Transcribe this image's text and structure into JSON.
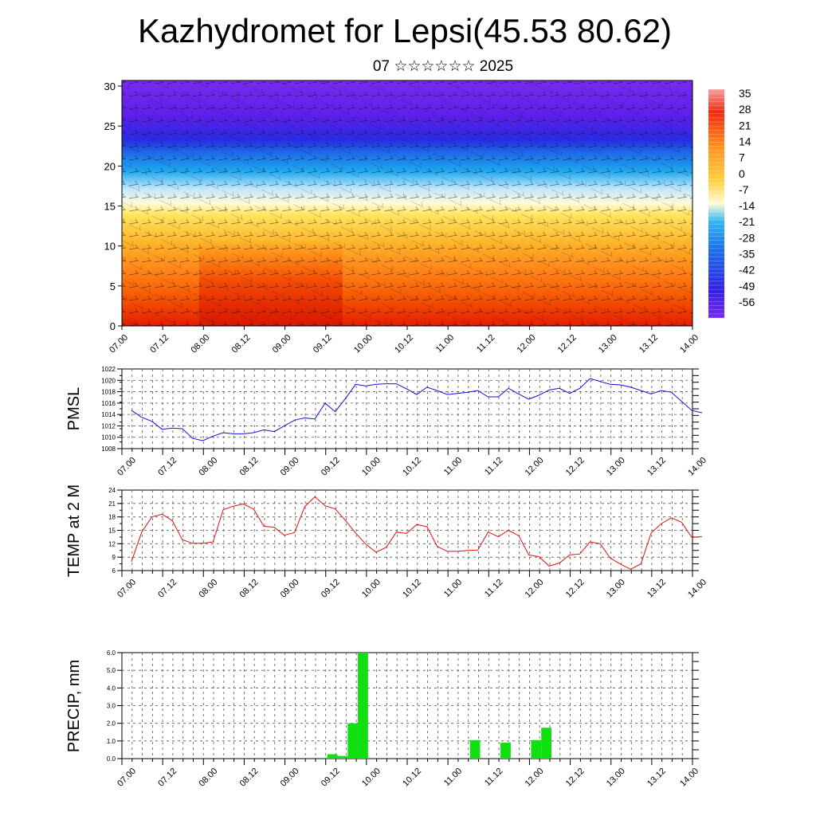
{
  "header": {
    "title": "Kazhydromet for Lepsi(45.53 80.62)",
    "subtitle": "07 ☆☆☆☆☆☆ 2025"
  },
  "colors": {
    "pmsl_line": "#1010e0",
    "temp_line": "#e01010",
    "precip_bar": "#10e010"
  },
  "time_ticks": [
    "07.00",
    "07.12",
    "08.00",
    "08.12",
    "09.00",
    "09.12",
    "10.00",
    "10.12",
    "11.00",
    "11.12",
    "12.00",
    "12.12",
    "13.00",
    "13.12",
    "14.00"
  ],
  "chart_data": [
    {
      "type": "heatmap",
      "title": "",
      "xlabel": "",
      "ylabel": "",
      "x_ticks": [
        "07.00",
        "07.12",
        "08.00",
        "08.12",
        "09.00",
        "09.12",
        "10.00",
        "10.12",
        "11.00",
        "11.12",
        "12.00",
        "12.12",
        "13.00",
        "13.12",
        "14.00"
      ],
      "y_ticks": [
        "0",
        "5",
        "10",
        "15",
        "20",
        "25",
        "30"
      ],
      "ylim": [
        0,
        30.7
      ],
      "colorbar_labels": [
        "35",
        "28",
        "21",
        "14",
        "7",
        "0",
        "-7",
        "-14",
        "-21",
        "-28",
        "-35",
        "-42",
        "-49",
        "-56"
      ],
      "overlay": "wind barbs",
      "legend_position": "right"
    },
    {
      "type": "line",
      "title": "",
      "ylabel": "PMSL",
      "ylim": [
        1008,
        1022
      ],
      "y_ticks": [
        "1008",
        "1010",
        "1012",
        "1014",
        "1016",
        "1018",
        "1020",
        "1022"
      ],
      "x_ticks": [
        "07.00",
        "07.12",
        "08.00",
        "08.12",
        "09.00",
        "09.12",
        "10.00",
        "10.12",
        "11.00",
        "11.12",
        "12.00",
        "12.12",
        "13.00",
        "13.12",
        "14.00"
      ],
      "grid": true,
      "series": [
        {
          "x": [
            "07.00",
            "07.03",
            "07.06",
            "07.09",
            "07.12",
            "07.15",
            "07.18",
            "07.21",
            "08.00",
            "08.03",
            "08.06",
            "08.09",
            "08.12",
            "08.15",
            "08.18",
            "08.21",
            "09.00",
            "09.03",
            "09.06",
            "09.09",
            "09.12",
            "09.15",
            "09.18",
            "09.21",
            "10.00",
            "10.03",
            "10.06",
            "10.09",
            "10.12",
            "10.15",
            "10.18",
            "10.21",
            "11.00",
            "11.03",
            "11.06",
            "11.09",
            "11.12",
            "11.15",
            "11.18",
            "11.21",
            "12.00",
            "12.03",
            "12.06",
            "12.09",
            "12.12",
            "12.15",
            "12.18",
            "12.21",
            "13.00",
            "13.03",
            "13.06",
            "13.09",
            "13.12",
            "13.15",
            "13.18",
            "13.21",
            "14.00"
          ],
          "values": [
            1014.7,
            1013.5,
            1012.8,
            1011.4,
            1011.6,
            1011.5,
            1009.8,
            1009.4,
            1010.2,
            1010.8,
            1010.6,
            1010.6,
            1010.8,
            1011.3,
            1011.0,
            1012.0,
            1013.0,
            1013.4,
            1013.2,
            1016.0,
            1014.5,
            1016.8,
            1019.3,
            1019.0,
            1019.3,
            1019.4,
            1019.4,
            1018.5,
            1017.5,
            1018.8,
            1018.2,
            1017.5,
            1017.7,
            1017.9,
            1018.2,
            1017.1,
            1017.1,
            1018.6,
            1017.6,
            1016.7,
            1017.4,
            1018.3,
            1018.6,
            1017.7,
            1018.6,
            1020.3,
            1019.8,
            1019.3,
            1019.2,
            1018.8,
            1018.2,
            1017.6,
            1018.2,
            1017.9,
            1016.3,
            1014.7,
            1014.3
          ]
        }
      ]
    },
    {
      "type": "line",
      "title": "",
      "ylabel": "TEMP at 2 M",
      "ylim": [
        6,
        24
      ],
      "y_ticks": [
        "6",
        "9",
        "12",
        "15",
        "18",
        "21",
        "24"
      ],
      "x_ticks": [
        "07.00",
        "07.12",
        "08.00",
        "08.12",
        "09.00",
        "09.12",
        "10.00",
        "10.12",
        "11.00",
        "11.12",
        "12.00",
        "12.12",
        "13.00",
        "13.12",
        "14.00"
      ],
      "grid": true,
      "series": [
        {
          "x": [
            "07.00",
            "07.03",
            "07.06",
            "07.09",
            "07.12",
            "07.15",
            "07.18",
            "07.21",
            "08.00",
            "08.03",
            "08.06",
            "08.09",
            "08.12",
            "08.15",
            "08.18",
            "08.21",
            "09.00",
            "09.03",
            "09.06",
            "09.09",
            "09.12",
            "09.15",
            "09.18",
            "09.21",
            "10.00",
            "10.03",
            "10.06",
            "10.09",
            "10.12",
            "10.15",
            "10.18",
            "10.21",
            "11.00",
            "11.03",
            "11.06",
            "11.09",
            "11.12",
            "11.15",
            "11.18",
            "11.21",
            "12.00",
            "12.03",
            "12.06",
            "12.09",
            "12.12",
            "12.15",
            "12.18",
            "12.21",
            "13.00",
            "13.03",
            "13.06",
            "13.09",
            "13.12",
            "13.15",
            "13.18",
            "13.21",
            "14.00"
          ],
          "values": [
            8.0,
            14.6,
            18.0,
            18.6,
            17.2,
            12.9,
            12.1,
            12.1,
            12.4,
            19.6,
            20.4,
            20.9,
            19.7,
            15.9,
            15.7,
            13.9,
            14.5,
            20.3,
            22.5,
            20.5,
            19.8,
            17.2,
            14.4,
            11.9,
            10.1,
            11.2,
            14.6,
            14.3,
            16.3,
            15.8,
            11.4,
            10.3,
            10.3,
            10.5,
            10.6,
            14.6,
            13.6,
            15.0,
            13.8,
            9.5,
            9.1,
            7.0,
            7.7,
            9.5,
            9.7,
            12.4,
            12.0,
            8.8,
            7.4,
            6.3,
            7.5,
            14.4,
            16.5,
            17.8,
            16.8,
            13.4,
            13.6
          ]
        }
      ]
    },
    {
      "type": "bar",
      "title": "",
      "ylabel": "PRECIP, mm",
      "ylim": [
        0,
        6
      ],
      "y_ticks": [
        "0.0",
        "1.0",
        "2.0",
        "3.0",
        "4.0",
        "5.0",
        "6.0"
      ],
      "x_ticks": [
        "07.00",
        "07.12",
        "08.00",
        "08.12",
        "09.00",
        "09.12",
        "10.00",
        "10.12",
        "11.00",
        "11.12",
        "12.00",
        "12.12",
        "13.00",
        "13.12"
      ],
      "grid": true,
      "categories": [
        "07.00",
        "07.03",
        "07.06",
        "07.09",
        "07.12",
        "07.15",
        "07.18",
        "07.21",
        "08.00",
        "08.03",
        "08.06",
        "08.09",
        "08.12",
        "08.15",
        "08.18",
        "08.21",
        "09.00",
        "09.03",
        "09.06",
        "09.09",
        "09.12",
        "09.15",
        "09.18",
        "09.21",
        "10.00",
        "10.03",
        "10.06",
        "10.09",
        "10.12",
        "10.15",
        "10.18",
        "10.21",
        "11.00",
        "11.03",
        "11.06",
        "11.09",
        "11.12",
        "11.15",
        "11.18",
        "11.21",
        "12.00",
        "12.03",
        "12.06",
        "12.09",
        "12.12",
        "12.15",
        "12.18",
        "12.21",
        "13.00",
        "13.03",
        "13.06",
        "13.09",
        "13.12",
        "13.15",
        "13.18",
        "13.21"
      ],
      "values": [
        0,
        0,
        0,
        0,
        0,
        0,
        0,
        0,
        0,
        0,
        0,
        0,
        0,
        0,
        0,
        0,
        0,
        0,
        0,
        0.05,
        0.25,
        0.15,
        2.0,
        6.0,
        0,
        0,
        0,
        0,
        0,
        0,
        0,
        0,
        0,
        0,
        1.05,
        0,
        0,
        0.9,
        0,
        0,
        1.05,
        1.75,
        0,
        0,
        0,
        0,
        0,
        0,
        0,
        0,
        0,
        0,
        0,
        0,
        0,
        0
      ]
    }
  ]
}
